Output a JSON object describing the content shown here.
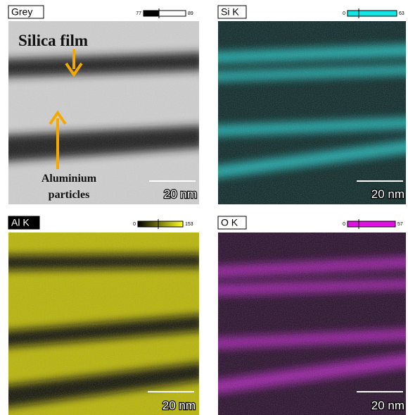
{
  "panels": [
    {
      "label": "Grey",
      "scale_min": 77,
      "scale_max": 89,
      "scale_bar": "20 nm"
    },
    {
      "label": "Si K",
      "scale_min": 0,
      "scale_max": 63,
      "scale_bar": "20 nm"
    },
    {
      "label": "Al K",
      "scale_min": 0,
      "scale_max": 153,
      "scale_bar": "20 nm"
    },
    {
      "label": "O K",
      "scale_min": 0,
      "scale_max": 57,
      "scale_bar": "20 nm"
    }
  ],
  "annotations": {
    "film": "Silica film",
    "particles_line1": "Aluminium",
    "particles_line2": "particles"
  }
}
